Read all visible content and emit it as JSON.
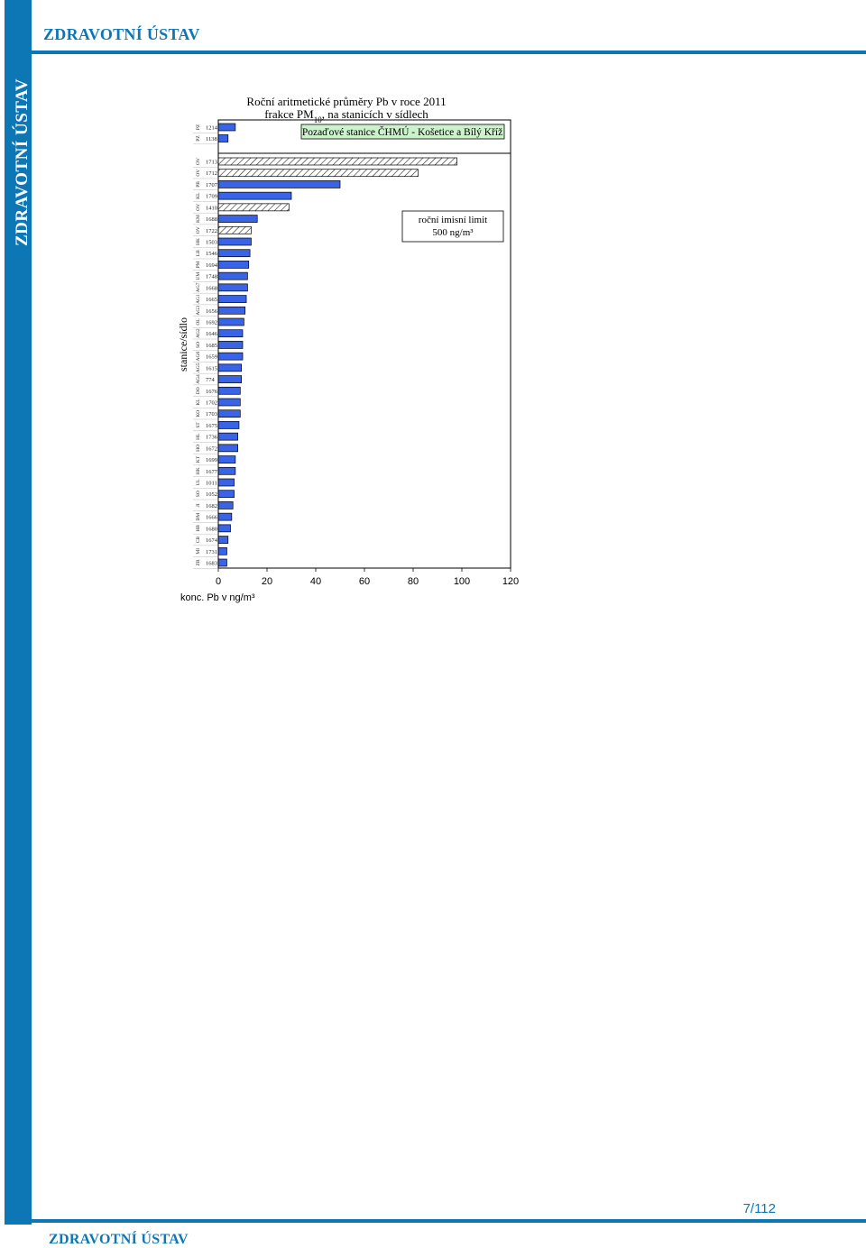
{
  "header": {
    "title": "ZDRAVOTNÍ ÚSTAV"
  },
  "sidebar": {
    "title": "ZDRAVOTNÍ ÚSTAV"
  },
  "footer": {
    "title": "ZDRAVOTNÍ ÚSTAV",
    "page": "7/112"
  },
  "colors": {
    "accent": "#0d77b5",
    "bar_fill": "#3a64e8",
    "legend_bg": "#ccf2cc"
  },
  "chart_data": {
    "type": "bar",
    "orientation": "horizontal",
    "title_line1": "Roční aritmetické průměry Pb v roce 2011",
    "title_line2_pre": "frakce PM",
    "title_line2_sub": "10",
    "title_line2_post": ", na stanicích v sídlech",
    "legend_label": "Pozaďové stanice ČHMÚ - Košetice a Bílý Kříž",
    "limit_label_line1": "roční imisní limit",
    "limit_label_line2": "500 ng/m³",
    "xlabel": "konc. Pb v ng/m³",
    "ylabel": "stanice/sídlo",
    "xlim": [
      0,
      120
    ],
    "xticks": [
      0,
      20,
      40,
      60,
      80,
      100,
      120
    ],
    "grid": false,
    "legend_placement": "top-right",
    "groups": [
      {
        "name": "background",
        "pattern": "solid",
        "stations": [
          {
            "region": "PZ",
            "code": "1214",
            "value": 7.0
          },
          {
            "region": "PZ",
            "code": "1138",
            "value": 4.0
          }
        ]
      },
      {
        "name": "settlements",
        "pattern": "mixed",
        "stations": [
          {
            "region": "OV",
            "code": "1713",
            "value": 98.0,
            "hatched": true
          },
          {
            "region": "OV",
            "code": "1712",
            "value": 82.0,
            "hatched": true
          },
          {
            "region": "PB",
            "code": "1707",
            "value": 50.0,
            "hatched": false
          },
          {
            "region": "KL",
            "code": "1709",
            "value": 30.0,
            "hatched": false
          },
          {
            "region": "OV",
            "code": "1410",
            "value": 29.0,
            "hatched": true
          },
          {
            "region": "KM",
            "code": "1688",
            "value": 16.0,
            "hatched": false
          },
          {
            "region": "OV",
            "code": "1722",
            "value": 13.5,
            "hatched": true
          },
          {
            "region": "HK",
            "code": "1503",
            "value": 13.5,
            "hatched": false
          },
          {
            "region": "LB",
            "code": "1546",
            "value": 13.0,
            "hatched": false
          },
          {
            "region": "PM",
            "code": "1694",
            "value": 12.5,
            "hatched": false
          },
          {
            "region": "UM",
            "code": "1748",
            "value": 12.0,
            "hatched": false
          },
          {
            "region": "AG7",
            "code": "1668",
            "value": 12.0,
            "hatched": false
          },
          {
            "region": "AG1",
            "code": "1665",
            "value": 11.5,
            "hatched": false
          },
          {
            "region": "AG3",
            "code": "1656",
            "value": 11.0,
            "hatched": false
          },
          {
            "region": "OL",
            "code": "1692",
            "value": 10.5,
            "hatched": false
          },
          {
            "region": "AG2",
            "code": "1646",
            "value": 10.0,
            "hatched": false
          },
          {
            "region": "SO",
            "code": "1685",
            "value": 10.0,
            "hatched": false
          },
          {
            "region": "AG6",
            "code": "1659",
            "value": 10.0,
            "hatched": false
          },
          {
            "region": "AG5",
            "code": "1615",
            "value": 9.5,
            "hatched": false
          },
          {
            "region": "AG4",
            "code": "774",
            "value": 9.5,
            "hatched": false
          },
          {
            "region": "DO",
            "code": "1676",
            "value": 9.0,
            "hatched": false
          },
          {
            "region": "KL",
            "code": "1702",
            "value": 9.0,
            "hatched": false
          },
          {
            "region": "KO",
            "code": "1703",
            "value": 9.0,
            "hatched": false
          },
          {
            "region": "ST",
            "code": "1675",
            "value": 8.5,
            "hatched": false
          },
          {
            "region": "HL",
            "code": "1736",
            "value": 8.0,
            "hatched": false
          },
          {
            "region": "HO",
            "code": "1672",
            "value": 8.0,
            "hatched": false
          },
          {
            "region": "KT",
            "code": "1699",
            "value": 7.0,
            "hatched": false
          },
          {
            "region": "HK",
            "code": "1677",
            "value": 7.0,
            "hatched": false
          },
          {
            "region": "UL",
            "code": "1011",
            "value": 6.5,
            "hatched": false
          },
          {
            "region": "SO",
            "code": "1052",
            "value": 6.5,
            "hatched": false
          },
          {
            "region": "JI",
            "code": "1682",
            "value": 6.0,
            "hatched": false
          },
          {
            "region": "DM",
            "code": "1666",
            "value": 5.5,
            "hatched": false
          },
          {
            "region": "HB",
            "code": "1680",
            "value": 5.0,
            "hatched": false
          },
          {
            "region": "CB",
            "code": "1674",
            "value": 4.0,
            "hatched": false
          },
          {
            "region": "MI",
            "code": "1731",
            "value": 3.5,
            "hatched": false
          },
          {
            "region": "ZR",
            "code": "1683",
            "value": 3.5,
            "hatched": false
          }
        ]
      }
    ]
  }
}
